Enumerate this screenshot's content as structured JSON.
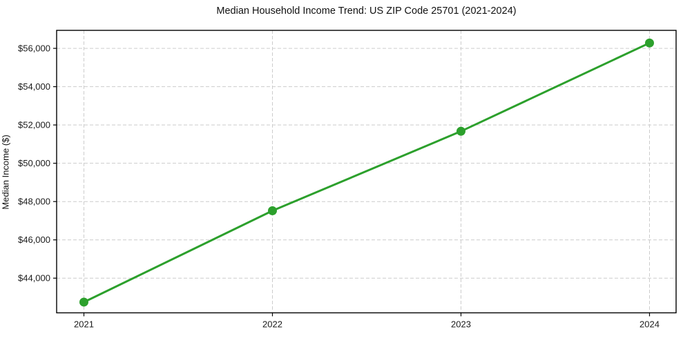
{
  "figure": {
    "title": "Median Household Income Trend: US ZIP Code 25701 (2021-2024)",
    "y_axis_label": "Median Income ($)"
  },
  "chart_data": {
    "type": "line",
    "title": "Median Household Income Trend: US ZIP Code 25701 (2021-2024)",
    "xlabel": "",
    "ylabel": "Median Income ($)",
    "categories": [
      "2021",
      "2022",
      "2023",
      "2024"
    ],
    "values": [
      42750,
      47520,
      51670,
      56280
    ],
    "yticks": [
      44000,
      46000,
      48000,
      50000,
      52000,
      54000,
      56000
    ],
    "ytick_labels": [
      "$44,000",
      "$46,000",
      "$48,000",
      "$50,000",
      "$52,000",
      "$54,000",
      "$56,000"
    ],
    "ylim": [
      42190,
      56940
    ],
    "grid": true,
    "grid_style": "dashed",
    "legend": "none",
    "line_color": "#2ca02c",
    "marker": "circle",
    "marker_radius": 6.5,
    "line_width": 3,
    "grid_color": "#cccccc",
    "frame_color": "#000000",
    "tick_label_color": "#1a1a1a"
  }
}
